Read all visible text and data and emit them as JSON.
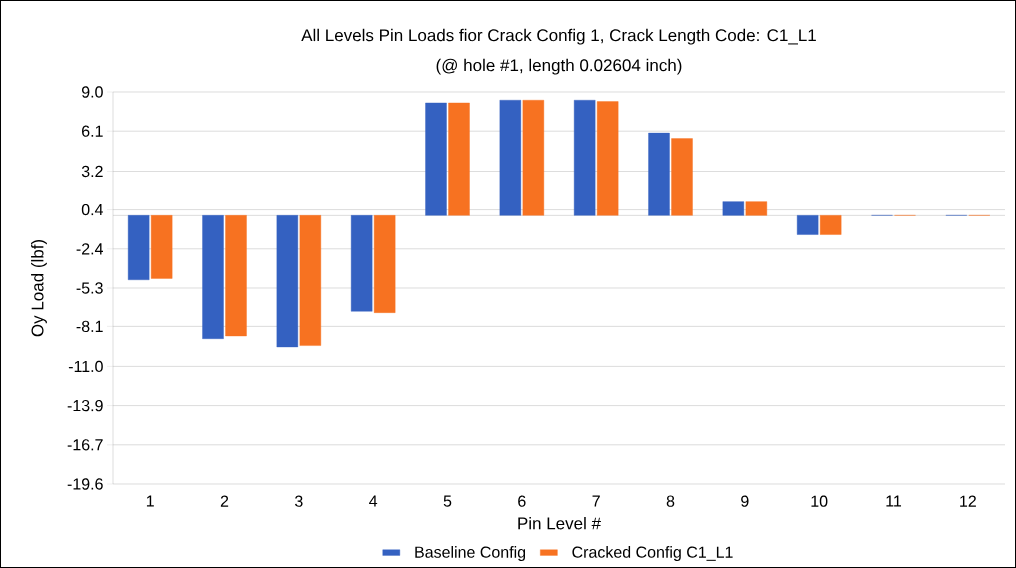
{
  "chart_data": {
    "type": "bar",
    "title": "All Levels Pin Loads fior Crack Config 1, Crack Length Code: C1_L1",
    "subtitle": "(@ hole #1, length 0.02604 inch)",
    "xlabel": "Pin Level #",
    "ylabel": "Oy Load (lbf)",
    "categories": [
      "1",
      "2",
      "3",
      "4",
      "5",
      "6",
      "7",
      "8",
      "9",
      "10",
      "11",
      "12"
    ],
    "series": [
      {
        "name": "Baseline Config",
        "color": "#3461c1",
        "values": [
          -4.7,
          -9.0,
          -9.6,
          -7.0,
          8.2,
          8.4,
          8.4,
          6.0,
          1.0,
          -1.4,
          0,
          0
        ]
      },
      {
        "name": "Cracked Config C1_L1",
        "color": "#f77221",
        "values": [
          -4.6,
          -8.8,
          -9.5,
          -7.1,
          8.2,
          8.4,
          8.3,
          5.6,
          1.0,
          -1.4,
          0,
          0
        ]
      }
    ],
    "ylim": [
      -19.6,
      9.0
    ],
    "yticks": [
      {
        "value": -19.6,
        "label": "-19.6"
      },
      {
        "value": -16.74,
        "label": "-16.7"
      },
      {
        "value": -13.88,
        "label": "-13.9"
      },
      {
        "value": -11.02,
        "label": "-11.0"
      },
      {
        "value": -8.1,
        "label": "-8.1"
      },
      {
        "value": -5.3,
        "label": "-5.3"
      },
      {
        "value": -2.44,
        "label": "-2.4"
      },
      {
        "value": 0.42,
        "label": "0.4"
      },
      {
        "value": 3.2,
        "label": "3.2"
      },
      {
        "value": 6.14,
        "label": "6.1"
      },
      {
        "value": 9.0,
        "label": "9.0"
      }
    ],
    "grid": "y",
    "legend": "bottom"
  }
}
